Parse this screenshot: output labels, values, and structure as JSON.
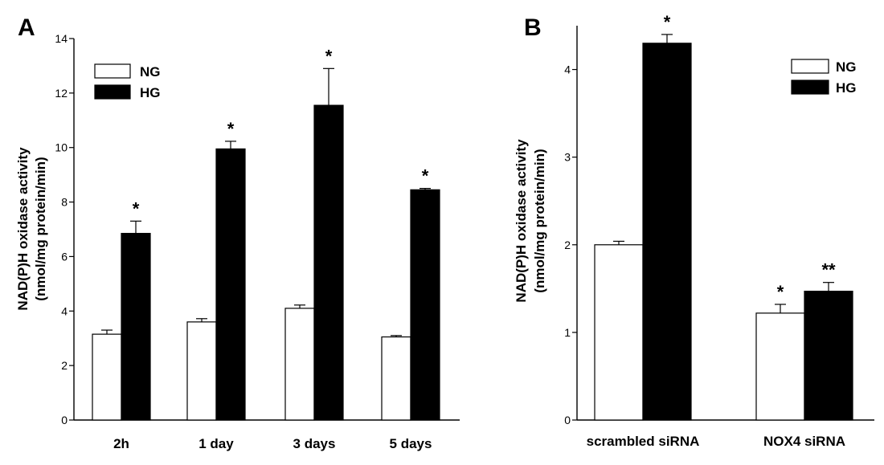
{
  "panels": {
    "a": {
      "label": "A"
    },
    "b": {
      "label": "B"
    }
  },
  "colors": {
    "NG": "#ffffff",
    "HG": "#000000",
    "axis": "#000000"
  },
  "chart_data": [
    {
      "type": "bar",
      "panel": "A",
      "ylabel_line1": "NAD(P)H oxidase activity",
      "ylabel_line2": "(nmol/mg protein/min)",
      "ylim": [
        0,
        14
      ],
      "yticks": [
        0,
        2,
        4,
        6,
        8,
        10,
        12,
        14
      ],
      "categories": [
        "2h",
        "1 day",
        "3 days",
        "5 days"
      ],
      "series": [
        {
          "name": "NG",
          "values": [
            3.15,
            3.6,
            4.1,
            3.05
          ],
          "errors": [
            0.15,
            0.12,
            0.12,
            0.05
          ],
          "marks": [
            "",
            "",
            "",
            ""
          ]
        },
        {
          "name": "HG",
          "values": [
            6.85,
            9.95,
            11.55,
            8.45
          ],
          "errors": [
            0.45,
            0.28,
            1.35,
            0.05
          ],
          "marks": [
            "*",
            "*",
            "*",
            "*"
          ]
        }
      ],
      "legend_position": "top-left"
    },
    {
      "type": "bar",
      "panel": "B",
      "ylabel_line1": "NAD(P)H oxidase activity",
      "ylabel_line2": "(nmol/mg protein/min)",
      "ylim": [
        0,
        4.5
      ],
      "yticks": [
        0,
        1,
        2,
        3,
        4
      ],
      "categories": [
        "scrambled siRNA",
        "NOX4 siRNA"
      ],
      "series": [
        {
          "name": "NG",
          "values": [
            2.0,
            1.22
          ],
          "errors": [
            0.04,
            0.1
          ],
          "marks": [
            "",
            "*"
          ]
        },
        {
          "name": "HG",
          "values": [
            4.3,
            1.47
          ],
          "errors": [
            0.1,
            0.1
          ],
          "marks": [
            "*",
            "**"
          ]
        }
      ],
      "legend_position": "top-right"
    }
  ]
}
